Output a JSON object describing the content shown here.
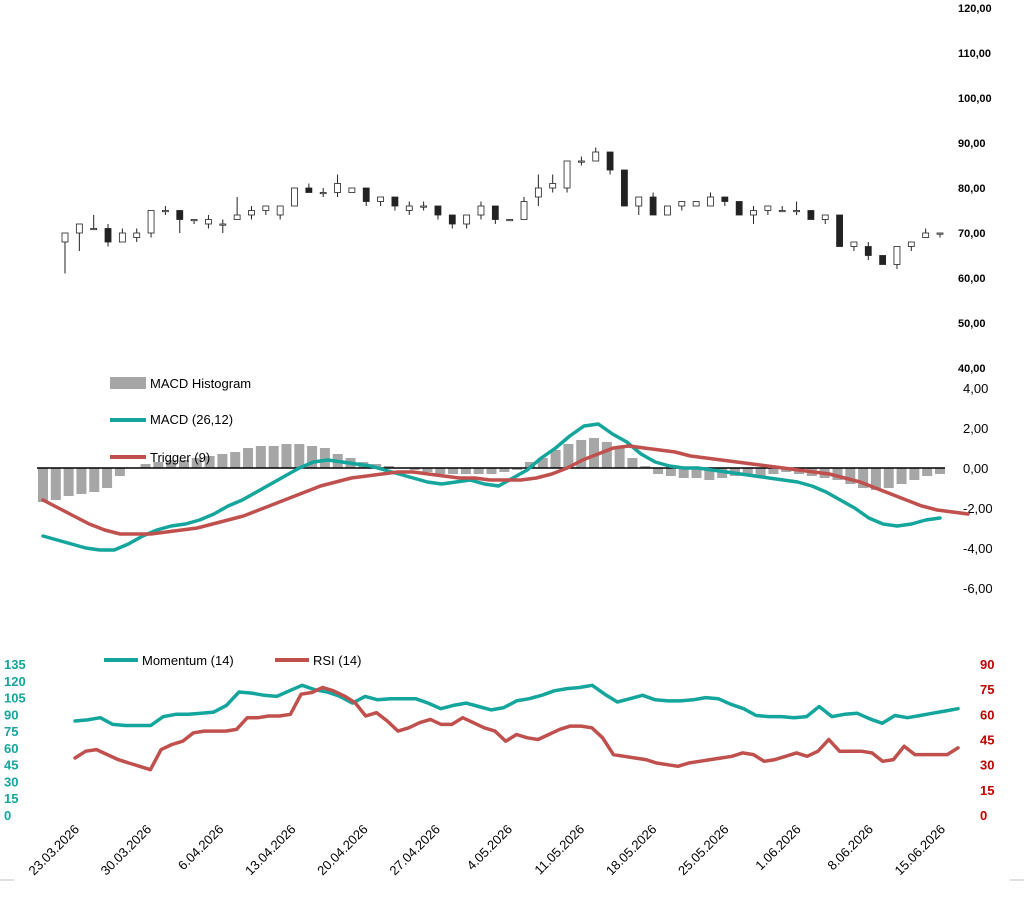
{
  "colors": {
    "candle_up": "#ffffff",
    "candle_down": "#222222",
    "candle_edge": "#222222",
    "histogram": "#a6a6a6",
    "macd": "#14a59c",
    "trigger": "#c0504d",
    "momentum": "#14a59c",
    "rsi": "#c0504d",
    "momentum_axis": "#14a59c",
    "rsi_axis": "#c00000"
  },
  "chart_data": [
    {
      "type": "candlestick",
      "name": "price",
      "y_ticks": [
        "120,00",
        "110,00",
        "100,00",
        "90,00",
        "80,00",
        "70,00",
        "60,00",
        "50,00",
        "40,00"
      ],
      "ylim": [
        40,
        120
      ],
      "candles": [
        [
          68,
          70,
          61,
          70
        ],
        [
          70,
          72,
          66,
          72
        ],
        [
          71,
          74,
          71,
          71
        ],
        [
          71,
          72,
          67,
          68
        ],
        [
          68,
          71,
          68,
          70
        ],
        [
          69,
          71,
          68,
          70
        ],
        [
          70,
          75,
          69,
          75
        ],
        [
          75,
          76,
          74,
          75
        ],
        [
          75,
          75,
          70,
          73
        ],
        [
          73,
          73,
          72,
          73
        ],
        [
          72,
          74,
          71,
          73
        ],
        [
          72,
          73,
          70,
          72
        ],
        [
          73,
          78,
          73,
          74
        ],
        [
          74,
          76,
          73,
          75
        ],
        [
          75,
          76,
          74,
          76
        ],
        [
          74,
          76,
          73,
          76
        ],
        [
          76,
          80,
          76,
          80
        ],
        [
          80,
          81,
          79,
          79
        ],
        [
          79,
          80,
          78,
          79
        ],
        [
          79,
          83,
          78,
          81
        ],
        [
          79,
          80,
          79,
          80
        ],
        [
          80,
          80,
          76,
          77
        ],
        [
          77,
          78,
          76,
          78
        ],
        [
          78,
          78,
          75,
          76
        ],
        [
          75,
          77,
          74,
          76
        ],
        [
          76,
          77,
          75,
          76
        ],
        [
          76,
          76,
          73,
          74
        ],
        [
          74,
          74,
          71,
          72
        ],
        [
          72,
          74,
          71,
          74
        ],
        [
          74,
          77,
          73,
          76
        ],
        [
          76,
          76,
          72,
          73
        ],
        [
          73,
          73,
          73,
          73
        ],
        [
          73,
          78,
          73,
          77
        ],
        [
          78,
          83,
          76,
          80
        ],
        [
          80,
          83,
          79,
          81
        ],
        [
          80,
          86,
          79,
          86
        ],
        [
          86,
          87,
          85,
          86
        ],
        [
          86,
          89,
          86,
          88
        ],
        [
          88,
          88,
          83,
          84
        ],
        [
          84,
          84,
          76,
          76
        ],
        [
          76,
          78,
          74,
          78
        ],
        [
          78,
          79,
          74,
          74
        ],
        [
          74,
          76,
          74,
          76
        ],
        [
          76,
          77,
          75,
          77
        ],
        [
          76,
          77,
          76,
          77
        ],
        [
          76,
          79,
          76,
          78
        ],
        [
          78,
          78,
          76,
          77
        ],
        [
          77,
          77,
          74,
          74
        ],
        [
          74,
          76,
          72,
          75
        ],
        [
          75,
          76,
          74,
          76
        ],
        [
          75,
          76,
          75,
          75
        ],
        [
          75,
          77,
          74,
          75
        ],
        [
          75,
          75,
          73,
          73
        ],
        [
          73,
          74,
          72,
          74
        ],
        [
          74,
          74,
          67,
          67
        ],
        [
          67,
          68,
          66,
          68
        ],
        [
          67,
          68,
          64,
          65
        ],
        [
          65,
          65,
          63,
          63
        ],
        [
          63,
          67,
          62,
          67
        ],
        [
          67,
          68,
          66,
          68
        ],
        [
          69,
          71,
          69,
          70
        ],
        [
          70,
          70,
          69,
          70
        ]
      ]
    },
    {
      "type": "bar+line",
      "name": "macd",
      "legend": [
        "MACD Histogram",
        "MACD (26,12)",
        "Trigger (9)"
      ],
      "y_ticks": [
        "4,00",
        "2,00",
        "0,00",
        "-2,00",
        "-4,00",
        "-6,00"
      ],
      "ylim": [
        -6,
        4
      ],
      "series": [
        {
          "name": "MACD Histogram",
          "values": [
            -1.7,
            -1.6,
            -1.4,
            -1.3,
            -1.2,
            -1.0,
            -0.4,
            0.0,
            0.2,
            0.3,
            0.4,
            0.4,
            0.5,
            0.6,
            0.7,
            0.8,
            1.0,
            1.1,
            1.1,
            1.2,
            1.2,
            1.1,
            1.0,
            0.7,
            0.5,
            0.3,
            0.2,
            0.1,
            0.0,
            -0.1,
            -0.2,
            -0.3,
            -0.3,
            -0.3,
            -0.3,
            -0.3,
            -0.2,
            -0.1,
            0.3,
            0.5,
            0.9,
            1.2,
            1.4,
            1.5,
            1.3,
            1.0,
            0.5,
            0.1,
            -0.3,
            -0.4,
            -0.5,
            -0.5,
            -0.6,
            -0.5,
            -0.4,
            -0.3,
            -0.4,
            -0.3,
            -0.2,
            -0.3,
            -0.4,
            -0.5,
            -0.6,
            -0.8,
            -1.0,
            -1.1,
            -1.0,
            -0.8,
            -0.6,
            -0.4,
            -0.3
          ]
        },
        {
          "name": "MACD (26,12)",
          "values": [
            -3.4,
            -3.6,
            -3.8,
            -4.0,
            -4.1,
            -4.1,
            -3.8,
            -3.4,
            -3.1,
            -2.9,
            -2.8,
            -2.6,
            -2.3,
            -1.9,
            -1.6,
            -1.2,
            -0.8,
            -0.4,
            0.0,
            0.3,
            0.4,
            0.3,
            0.2,
            0.1,
            -0.1,
            -0.3,
            -0.5,
            -0.7,
            -0.8,
            -0.7,
            -0.6,
            -0.8,
            -0.9,
            -0.5,
            -0.1,
            0.5,
            1.0,
            1.6,
            2.1,
            2.2,
            1.7,
            1.3,
            0.7,
            0.3,
            0.1,
            0.0,
            0.0,
            -0.1,
            -0.2,
            -0.3,
            -0.4,
            -0.5,
            -0.6,
            -0.7,
            -0.9,
            -1.2,
            -1.6,
            -2.0,
            -2.5,
            -2.8,
            -2.9,
            -2.8,
            -2.6,
            -2.5
          ]
        },
        {
          "name": "Trigger (9)",
          "values": [
            -1.6,
            -2.0,
            -2.4,
            -2.8,
            -3.1,
            -3.3,
            -3.3,
            -3.3,
            -3.2,
            -3.1,
            -3.0,
            -2.8,
            -2.6,
            -2.4,
            -2.1,
            -1.8,
            -1.5,
            -1.2,
            -0.9,
            -0.7,
            -0.5,
            -0.4,
            -0.3,
            -0.2,
            -0.2,
            -0.3,
            -0.4,
            -0.5,
            -0.5,
            -0.6,
            -0.6,
            -0.6,
            -0.5,
            -0.3,
            0.0,
            0.4,
            0.7,
            1.0,
            1.1,
            1.0,
            0.9,
            0.8,
            0.6,
            0.5,
            0.4,
            0.3,
            0.2,
            0.1,
            0.0,
            -0.1,
            -0.2,
            -0.3,
            -0.5,
            -0.7,
            -1.0,
            -1.3,
            -1.6,
            -1.9,
            -2.1,
            -2.2,
            -2.3
          ]
        }
      ]
    },
    {
      "type": "line",
      "name": "oscillators",
      "legend": [
        "Momentum (14)",
        "RSI (14)"
      ],
      "y_ticks_left": [
        "135",
        "120",
        "105",
        "90",
        "75",
        "60",
        "45",
        "30",
        "15",
        "0"
      ],
      "y_ticks_right": [
        "90",
        "75",
        "60",
        "45",
        "30",
        "15",
        "0"
      ],
      "ylim_left": [
        0,
        135
      ],
      "ylim_right": [
        0,
        90
      ],
      "x_tick_labels": [
        "23.03.2026",
        "30.03.2026",
        "6.04.2026",
        "13.04.2026",
        "20.04.2026",
        "27.04.2026",
        "4.05.2026",
        "11.05.2026",
        "18.05.2026",
        "25.05.2026",
        "1.06.2026",
        "8.06.2026",
        "15.06.2026"
      ],
      "series": [
        {
          "name": "Momentum (14)",
          "values": [
            84,
            85,
            87,
            81,
            80,
            80,
            80,
            88,
            90,
            90,
            91,
            92,
            98,
            110,
            109,
            107,
            106,
            111,
            116,
            112,
            110,
            106,
            100,
            106,
            103,
            104,
            104,
            104,
            100,
            95,
            98,
            100,
            97,
            94,
            96,
            102,
            104,
            107,
            111,
            113,
            114,
            116,
            108,
            101,
            104,
            107,
            103,
            102,
            102,
            103,
            105,
            104,
            99,
            95,
            89,
            88,
            88,
            87,
            88,
            97,
            88,
            90,
            91,
            86,
            82,
            89,
            87,
            89,
            91,
            93,
            95
          ]
        },
        {
          "name": "RSI (14)",
          "values": [
            34,
            38,
            39,
            36,
            33,
            31,
            29,
            27,
            39,
            42,
            44,
            49,
            50,
            50,
            50,
            51,
            58,
            58,
            59,
            59,
            60,
            72,
            73,
            76,
            74,
            71,
            67,
            59,
            61,
            56,
            50,
            52,
            55,
            57,
            54,
            54,
            58,
            55,
            52,
            50,
            44,
            48,
            46,
            45,
            48,
            51,
            53,
            53,
            52,
            46,
            36,
            35,
            34,
            33,
            31,
            30,
            29,
            31,
            32,
            33,
            34,
            35,
            37,
            36,
            32,
            33,
            35,
            37,
            35,
            38,
            45,
            38,
            38,
            38,
            37,
            32,
            33,
            41,
            36,
            36,
            36,
            36,
            40
          ]
        }
      ]
    }
  ]
}
